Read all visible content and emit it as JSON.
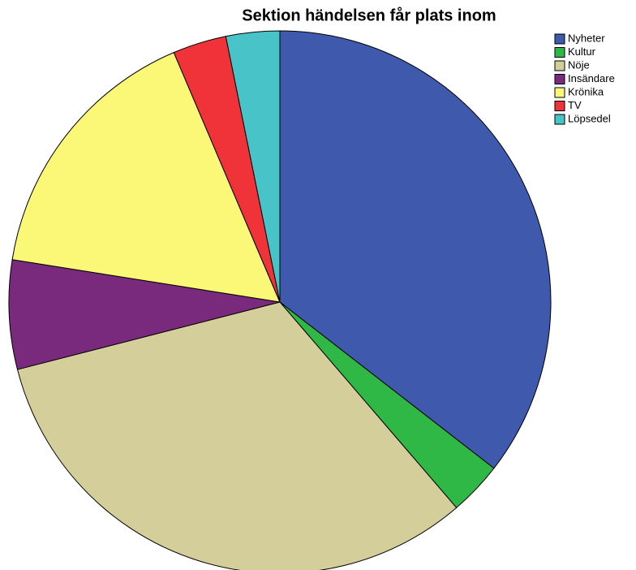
{
  "chart_data": {
    "type": "pie",
    "title": "Sektion händelsen får plats inom",
    "categories": [
      "Nyheter",
      "Kultur",
      "Nöje",
      "Insändare",
      "Krönika",
      "TV",
      "Löpsedel"
    ],
    "values": [
      35.5,
      3.2,
      32.3,
      6.5,
      16.1,
      3.2,
      3.2
    ],
    "colors": [
      "#3f59ad",
      "#2fb846",
      "#d4cf9a",
      "#7a2a7c",
      "#fbf878",
      "#ef3338",
      "#48c3c7"
    ],
    "legend": "top-right"
  }
}
